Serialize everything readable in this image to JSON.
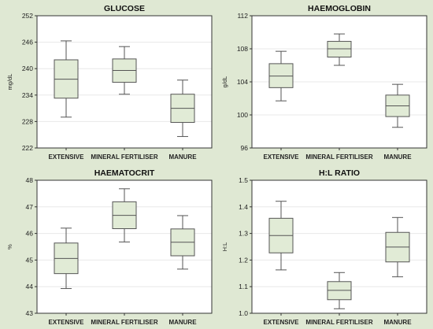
{
  "chart_data": [
    {
      "type": "boxplot",
      "title": "GLUCOSE",
      "ylabel": "mg/dL",
      "ylim": [
        222,
        252
      ],
      "yticks": [
        "222",
        "228",
        "234",
        "240",
        "246",
        "252"
      ],
      "categories": [
        "EXTENSIVE",
        "MINERAL FERTILISER",
        "MANURE"
      ],
      "boxes": [
        {
          "whisker_low": 229.0,
          "q1": 233.3,
          "median": 237.6,
          "q3": 242.0,
          "whisker_high": 246.3
        },
        {
          "whisker_low": 234.2,
          "q1": 236.9,
          "median": 239.6,
          "q3": 242.2,
          "whisker_high": 245.0
        },
        {
          "whisker_low": 224.6,
          "q1": 227.8,
          "median": 231.0,
          "q3": 234.2,
          "whisker_high": 237.4
        }
      ]
    },
    {
      "type": "boxplot",
      "title": "HAEMOGLOBIN",
      "ylabel": "g/dL",
      "ylim": [
        96,
        112
      ],
      "yticks": [
        "96",
        "100",
        "104",
        "108",
        "112"
      ],
      "categories": [
        "EXTENSIVE",
        "MINERAL FERTILISER",
        "MANURE"
      ],
      "boxes": [
        {
          "whisker_low": 101.7,
          "q1": 103.3,
          "median": 104.7,
          "q3": 106.2,
          "whisker_high": 107.7
        },
        {
          "whisker_low": 106.0,
          "q1": 107.0,
          "median": 108.0,
          "q3": 108.9,
          "whisker_high": 109.8
        },
        {
          "whisker_low": 98.5,
          "q1": 99.8,
          "median": 101.1,
          "q3": 102.4,
          "whisker_high": 103.7
        }
      ]
    },
    {
      "type": "boxplot",
      "title": "HAEMATOCRIT",
      "ylabel": "%",
      "ylim": [
        43,
        48
      ],
      "yticks": [
        "43",
        "44",
        "45",
        "46",
        "47",
        "48"
      ],
      "categories": [
        "EXTENSIVE",
        "MINERAL FERTILISER",
        "MANURE"
      ],
      "boxes": [
        {
          "whisker_low": 43.93,
          "q1": 44.49,
          "median": 45.06,
          "q3": 45.64,
          "whisker_high": 46.2
        },
        {
          "whisker_low": 45.68,
          "q1": 46.18,
          "median": 46.68,
          "q3": 47.19,
          "whisker_high": 47.68
        },
        {
          "whisker_low": 44.66,
          "q1": 45.16,
          "median": 45.67,
          "q3": 46.17,
          "whisker_high": 46.67
        }
      ]
    },
    {
      "type": "boxplot",
      "title": "H:L RATIO",
      "ylabel": "H:L",
      "ylim": [
        1.0,
        1.5
      ],
      "yticks": [
        "1.0",
        "1.1",
        "1.2",
        "1.3",
        "1.4",
        "1.5"
      ],
      "categories": [
        "EXTENSIVE",
        "MINERAL FERTILISER",
        "MANURE"
      ],
      "boxes": [
        {
          "whisker_low": 1.163,
          "q1": 1.227,
          "median": 1.292,
          "q3": 1.357,
          "whisker_high": 1.421
        },
        {
          "whisker_low": 1.017,
          "q1": 1.051,
          "median": 1.086,
          "q3": 1.119,
          "whisker_high": 1.153
        },
        {
          "whisker_low": 1.137,
          "q1": 1.193,
          "median": 1.249,
          "q3": 1.304,
          "whisker_high": 1.36
        }
      ]
    }
  ],
  "colors": {
    "background": "#dfe8d3",
    "plot_bg": "#ffffff",
    "box_fill": "#e1ebd6",
    "box_stroke": "#555555",
    "grid": "#e8e8e8"
  }
}
